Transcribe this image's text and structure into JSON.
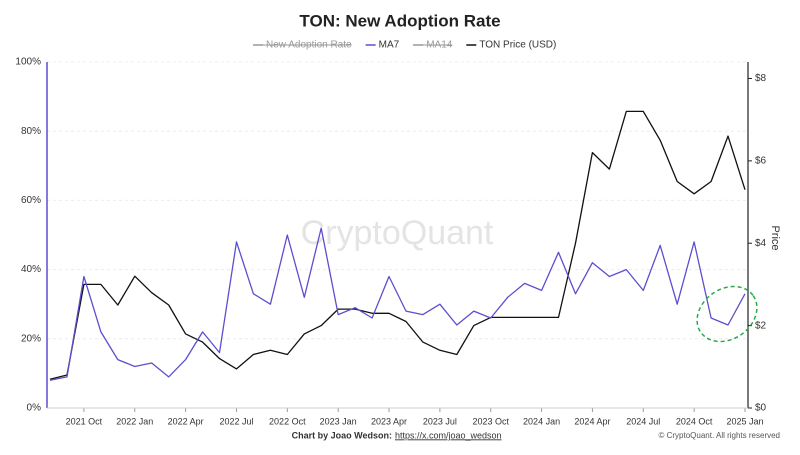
{
  "chart_data": {
    "type": "line",
    "title": "TON: New Adoption Rate",
    "watermark": "CryptoQuant",
    "y2_label": "Price",
    "footer_credit": "Chart by Joao Wedson:",
    "footer_link": "https://x.com/joao_wedson",
    "copyright": "© CryptoQuant. All rights reserved",
    "x": [
      "2021 Aug",
      "2021 Sep",
      "2021 Oct",
      "2021 Nov",
      "2021 Dec",
      "2022 Jan",
      "2022 Feb",
      "2022 Mar",
      "2022 Apr",
      "2022 May",
      "2022 Jun",
      "2022 Jul",
      "2022 Aug",
      "2022 Sep",
      "2022 Oct",
      "2022 Nov",
      "2022 Dec",
      "2023 Jan",
      "2023 Feb",
      "2023 Mar",
      "2023 Apr",
      "2023 May",
      "2023 Jun",
      "2023 Jul",
      "2023 Aug",
      "2023 Sep",
      "2023 Oct",
      "2023 Nov",
      "2023 Dec",
      "2024 Jan",
      "2024 Feb",
      "2024 Mar",
      "2024 Apr",
      "2024 May",
      "2024 Jun",
      "2024 Jul",
      "2024 Aug",
      "2024 Sep",
      "2024 Oct",
      "2024 Nov",
      "2024 Dec",
      "2025 Jan"
    ],
    "xticks": [
      "2021 Oct",
      "2022 Jan",
      "2022 Apr",
      "2022 Jul",
      "2022 Oct",
      "2023 Jan",
      "2023 Apr",
      "2023 Jul",
      "2023 Oct",
      "2024 Jan",
      "2024 Apr",
      "2024 Jul",
      "2024 Oct",
      "2025 Jan"
    ],
    "hidden_series": [
      {
        "name": "New Adoption Rate",
        "color": "#999999"
      },
      {
        "name": "MA14",
        "color": "#999999"
      }
    ],
    "series": [
      {
        "name": "MA7",
        "color": "#5b4fcf",
        "values": [
          8,
          9,
          38,
          22,
          14,
          12,
          13,
          9,
          14,
          22,
          16,
          48,
          33,
          30,
          50,
          32,
          52,
          27,
          29,
          26,
          38,
          28,
          27,
          30,
          24,
          28,
          26,
          32,
          36,
          34,
          45,
          33,
          42,
          38,
          40,
          34,
          47,
          30,
          48,
          26,
          24,
          33
        ]
      },
      {
        "name": "TON Price (USD)",
        "color": "#111111",
        "axis": "y2",
        "values": [
          0.7,
          0.8,
          3.0,
          3.0,
          2.5,
          3.2,
          2.8,
          2.5,
          1.8,
          1.6,
          1.2,
          0.95,
          1.3,
          1.4,
          1.3,
          1.8,
          2.0,
          2.4,
          2.4,
          2.3,
          2.3,
          2.1,
          1.6,
          1.4,
          1.3,
          2.0,
          2.2,
          2.2,
          2.2,
          2.2,
          2.2,
          4.0,
          6.2,
          5.8,
          7.2,
          7.2,
          6.5,
          5.5,
          5.2,
          5.5,
          6.6,
          5.3
        ]
      }
    ],
    "ylim": [
      0,
      100
    ],
    "yticks": [
      {
        "value": 0,
        "label": "0%"
      },
      {
        "value": 20,
        "label": "20%"
      },
      {
        "value": 40,
        "label": "40%"
      },
      {
        "value": 60,
        "label": "60%"
      },
      {
        "value": 80,
        "label": "80%"
      },
      {
        "value": 100,
        "label": "100%"
      }
    ],
    "y2lim": [
      0,
      8.4
    ],
    "y2ticks": [
      {
        "value": 0,
        "label": "$0"
      },
      {
        "value": 2,
        "label": "$2"
      },
      {
        "value": 4,
        "label": "$4"
      },
      {
        "value": 6,
        "label": "$6"
      },
      {
        "value": 8,
        "label": "$8"
      }
    ],
    "grid": true
  }
}
